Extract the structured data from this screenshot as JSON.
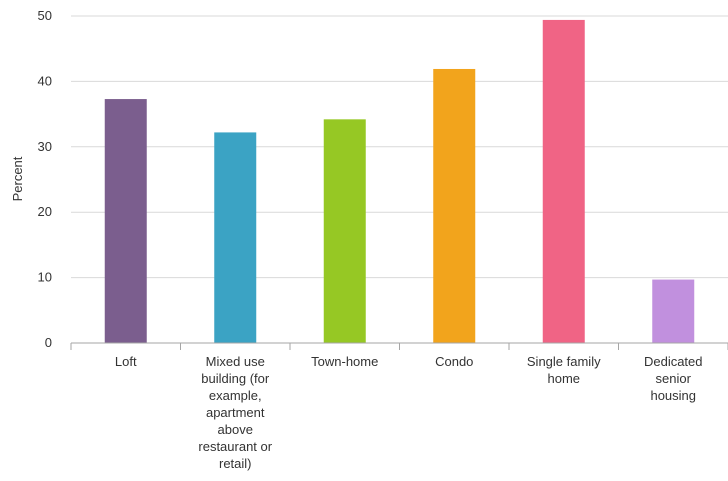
{
  "chart_data": {
    "type": "bar",
    "ylabel": "Percent",
    "xlabel": "",
    "ylim": [
      0,
      50
    ],
    "yticks": [
      0,
      10,
      20,
      30,
      40,
      50
    ],
    "grid": true,
    "categories": [
      "Loft",
      "Mixed use building (for example, apartment above restaurant or retail)",
      "Town-home",
      "Condo",
      "Single family home",
      "Dedicated senior housing"
    ],
    "category_lines": [
      [
        "Loft"
      ],
      [
        "Mixed use",
        "building (for",
        "example,",
        "apartment",
        "above",
        "restaurant or",
        "retail)"
      ],
      [
        "Town-home"
      ],
      [
        "Condo"
      ],
      [
        "Single family",
        "home"
      ],
      [
        "Dedicated",
        "senior",
        "housing"
      ]
    ],
    "values": [
      37.3,
      32.2,
      34.2,
      41.9,
      49.4,
      9.7
    ],
    "colors": [
      "#7b5e8e",
      "#3ba3c4",
      "#96c824",
      "#f2a41c",
      "#f06485",
      "#c190de"
    ]
  }
}
